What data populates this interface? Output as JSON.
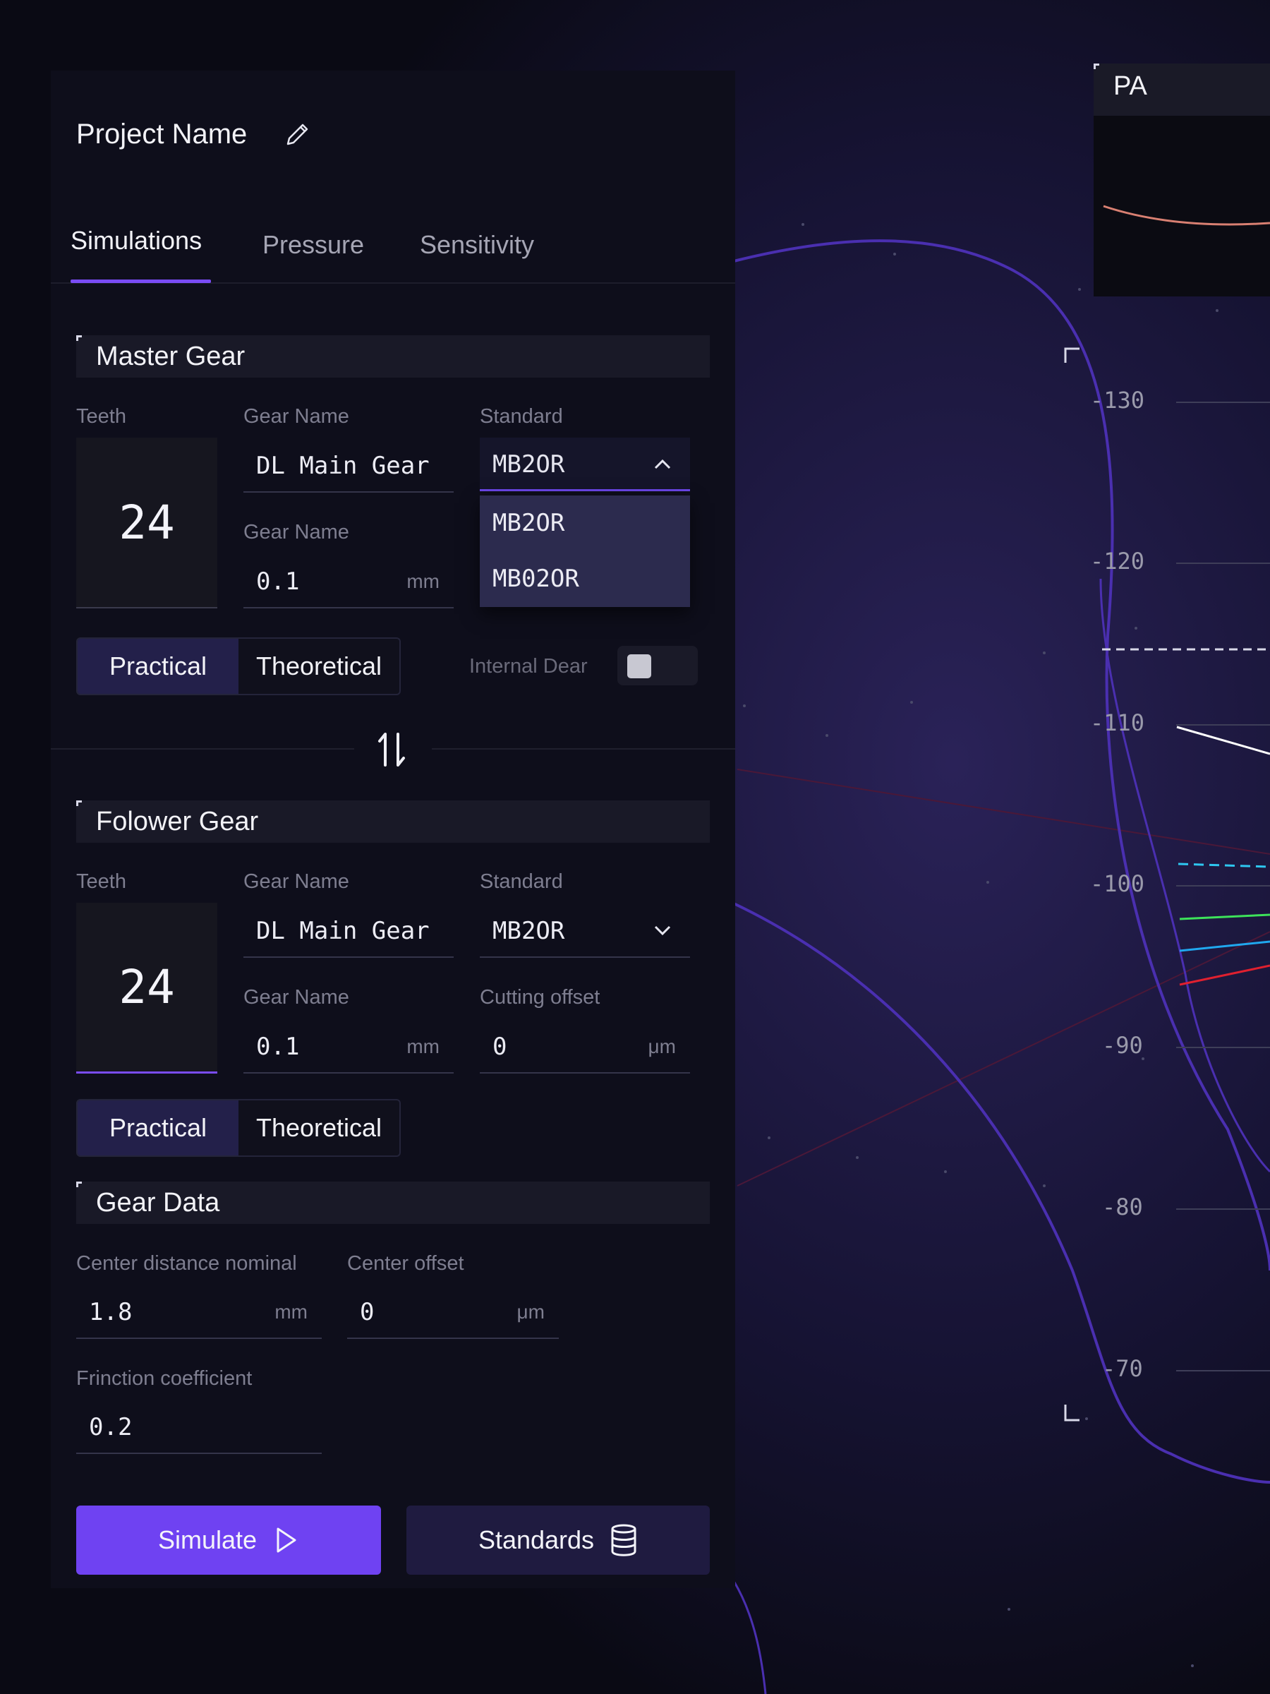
{
  "project": {
    "name": "Project Name"
  },
  "tabs": [
    {
      "label": "Simulations",
      "active": true
    },
    {
      "label": "Pressure",
      "active": false
    },
    {
      "label": "Sensitivity",
      "active": false
    }
  ],
  "master_gear": {
    "title": "Master Gear",
    "teeth_label": "Teeth",
    "teeth": "24",
    "gear_name_label": "Gear Name",
    "gear_name": "DL Main Gear",
    "standard_label": "Standard",
    "standard": "MB2OR",
    "standard_options": [
      "MB2OR",
      "MB02OR"
    ],
    "module_label": "Gear Name",
    "module_value": "0.1",
    "module_unit": "mm",
    "mode_options": [
      "Practical",
      "Theoretical"
    ],
    "mode_selected": "Practical",
    "internal_label": "Internal Dear",
    "internal_on": false
  },
  "follower_gear": {
    "title": "Folower Gear",
    "teeth_label": "Teeth",
    "teeth": "24",
    "gear_name_label": "Gear Name",
    "gear_name": "DL Main Gear",
    "standard_label": "Standard",
    "standard": "MB2OR",
    "module_label": "Gear Name",
    "module_value": "0.1",
    "module_unit": "mm",
    "cutting_offset_label": "Cutting offset",
    "cutting_offset": "0",
    "cutting_offset_unit": "μm",
    "mode_options": [
      "Practical",
      "Theoretical"
    ],
    "mode_selected": "Practical"
  },
  "gear_data": {
    "title": "Gear Data",
    "center_distance_label": "Center distance nominal",
    "center_distance": "1.8",
    "center_distance_unit": "mm",
    "center_offset_label": "Center offset",
    "center_offset": "0",
    "center_offset_unit": "μm",
    "friction_label": "Frinction coefficient",
    "friction": "0.2"
  },
  "actions": {
    "simulate": "Simulate",
    "standards": "Standards"
  },
  "chart": {
    "panel_title": "PA",
    "y_ticks": [
      "-130",
      "-120",
      "-110",
      "-100",
      "-90",
      "-80",
      "-70"
    ]
  },
  "colors": {
    "accent": "#6f42f2",
    "line_white": "#ffffff",
    "line_cyan": "#2ec7f0",
    "line_green": "#3de35a",
    "line_blue": "#20a8ef",
    "line_red": "#e0202f",
    "contour": "#4a2fb0"
  },
  "icons": {
    "edit": "pencil-icon",
    "dropdown_open": "chevron-up-icon",
    "dropdown_closed": "chevron-down-icon",
    "swap": "swap-icon",
    "play": "play-icon",
    "database": "database-icon"
  }
}
